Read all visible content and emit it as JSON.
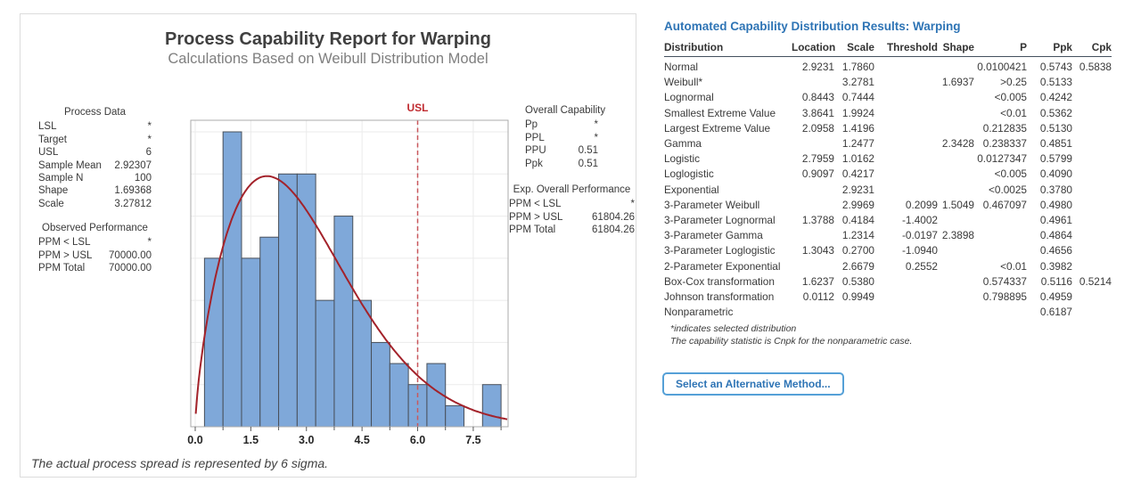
{
  "report": {
    "title": "Process Capability Report for Warping",
    "subtitle": "Calculations Based on Weibull Distribution Model",
    "usl_flag_label": "USL",
    "process_data": {
      "heading": "Process Data",
      "rows": [
        [
          "LSL",
          "*"
        ],
        [
          "Target",
          "*"
        ],
        [
          "USL",
          "6"
        ],
        [
          "Sample Mean",
          "2.92307"
        ],
        [
          "Sample N",
          "100"
        ],
        [
          "Shape",
          "1.69368"
        ],
        [
          "Scale",
          "3.27812"
        ]
      ]
    },
    "observed_performance": {
      "heading": "Observed Performance",
      "rows": [
        [
          "PPM < LSL",
          "*"
        ],
        [
          "PPM > USL",
          "70000.00"
        ],
        [
          "PPM Total",
          "70000.00"
        ]
      ]
    },
    "overall_capability": {
      "heading": "Overall Capability",
      "rows": [
        [
          "Pp",
          "*"
        ],
        [
          "PPL",
          "*"
        ],
        [
          "PPU",
          "0.51"
        ],
        [
          "Ppk",
          "0.51"
        ]
      ]
    },
    "exp_overall_performance": {
      "heading": "Exp. Overall Performance",
      "rows": [
        [
          "PPM < LSL",
          "*"
        ],
        [
          "PPM > USL",
          "61804.26"
        ],
        [
          "PPM Total",
          "61804.26"
        ]
      ]
    },
    "footnote": "The actual process spread is represented by 6 sigma."
  },
  "chart_data": {
    "type": "bar",
    "title": "Process Capability Report for Warping",
    "xlabel": "",
    "ylabel": "",
    "histogram": {
      "bin_width": 0.5,
      "bin_centers": [
        0.5,
        1.0,
        1.5,
        2.0,
        2.5,
        3.0,
        3.5,
        4.0,
        4.5,
        5.0,
        5.5,
        6.0,
        6.5,
        7.0,
        7.5,
        8.0
      ],
      "frequencies": [
        8,
        14,
        8,
        9,
        12,
        12,
        6,
        10,
        6,
        4,
        3,
        2,
        3,
        1,
        0,
        2
      ]
    },
    "x_ticks": [
      0,
      1.5,
      3,
      4.5,
      6,
      7.5
    ],
    "x_tick_labels": [
      "0.0",
      "1.5",
      "3.0",
      "4.5",
      "6.0",
      "7.5"
    ],
    "x_minor_ticks": [
      0.75,
      2.25,
      3.75,
      5.25,
      6.75,
      8.25
    ],
    "xlim": [
      -0.12,
      8.44
    ],
    "ylim": [
      0,
      14.55
    ],
    "y_grid_step": 2,
    "grid": true,
    "usl": 6,
    "usl_label": "USL",
    "fit_curve": {
      "distribution": "weibull",
      "shape": 1.69368,
      "scale": 3.27812,
      "sample_n": 100
    },
    "colors": {
      "bar_fill": "#7fa8d9",
      "bar_stroke": "#49505a",
      "curve": "#a3222a",
      "usl_line": "#c9575c",
      "usl_text": "#c02b30",
      "grid": "#ebebeb",
      "plot_border": "#ababab",
      "tick": "#595959",
      "tick_text": "#262626"
    }
  },
  "results_panel": {
    "title": "Automated Capability Distribution Results: Warping",
    "accent_color": "#2e74b5",
    "columns": [
      "Distribution",
      "Location",
      "Scale",
      "Threshold",
      "Shape",
      "P",
      "Ppk",
      "Cpk"
    ],
    "rows": [
      [
        "Normal",
        "2.9231",
        "1.7860",
        "",
        "",
        "0.0100421",
        "0.5743",
        "0.5838"
      ],
      [
        "Weibull*",
        "",
        "3.2781",
        "",
        "1.6937",
        ">0.25",
        "0.5133",
        ""
      ],
      [
        "Lognormal",
        "0.8443",
        "0.7444",
        "",
        "",
        "<0.005",
        "0.4242",
        ""
      ],
      [
        "Smallest Extreme Value",
        "3.8641",
        "1.9924",
        "",
        "",
        "<0.01",
        "0.5362",
        ""
      ],
      [
        "Largest Extreme Value",
        "2.0958",
        "1.4196",
        "",
        "",
        "0.212835",
        "0.5130",
        ""
      ],
      [
        "Gamma",
        "",
        "1.2477",
        "",
        "2.3428",
        "0.238337",
        "0.4851",
        ""
      ],
      [
        "Logistic",
        "2.7959",
        "1.0162",
        "",
        "",
        "0.0127347",
        "0.5799",
        ""
      ],
      [
        "Loglogistic",
        "0.9097",
        "0.4217",
        "",
        "",
        "<0.005",
        "0.4090",
        ""
      ],
      [
        "Exponential",
        "",
        "2.9231",
        "",
        "",
        "<0.0025",
        "0.3780",
        ""
      ],
      [
        "3-Parameter Weibull",
        "",
        "2.9969",
        "0.2099",
        "1.5049",
        "0.467097",
        "0.4980",
        ""
      ],
      [
        "3-Parameter Lognormal",
        "1.3788",
        "0.4184",
        "-1.4002",
        "",
        "",
        "0.4961",
        ""
      ],
      [
        "3-Parameter Gamma",
        "",
        "1.2314",
        "-0.0197",
        "2.3898",
        "",
        "0.4864",
        ""
      ],
      [
        "3-Parameter Loglogistic",
        "1.3043",
        "0.2700",
        "-1.0940",
        "",
        "",
        "0.4656",
        ""
      ],
      [
        "2-Parameter Exponential",
        "",
        "2.6679",
        "0.2552",
        "",
        "<0.01",
        "0.3982",
        ""
      ],
      [
        "Box-Cox transformation",
        "1.6237",
        "0.5380",
        "",
        "",
        "0.574337",
        "0.5116",
        "0.5214"
      ],
      [
        "Johnson transformation",
        "0.0112",
        "0.9949",
        "",
        "",
        "0.798895",
        "0.4959",
        ""
      ],
      [
        "Nonparametric",
        "",
        "",
        "",
        "",
        "",
        "0.6187",
        ""
      ]
    ],
    "footnotes": [
      "*indicates selected distribution",
      "The capability statistic is Cnpk for the nonparametric case."
    ],
    "button_label": "Select an Alternative Method..."
  }
}
